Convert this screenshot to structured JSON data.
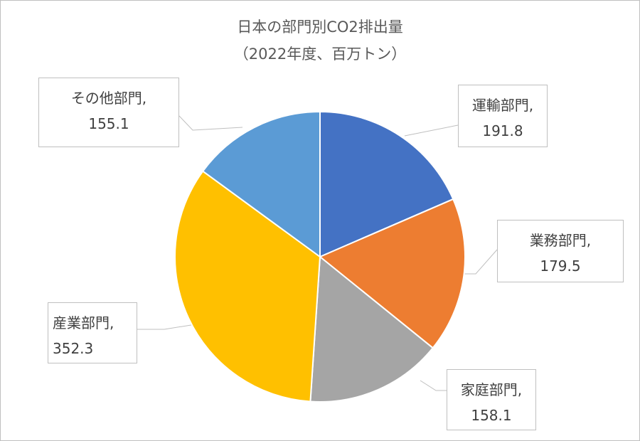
{
  "chart_data": {
    "type": "pie",
    "title": "日本の部門別CO2排出量",
    "subtitle": "（2022年度、百万トン）",
    "categories": [
      "運輸部門",
      "業務部門",
      "家庭部門",
      "産業部門",
      "その他部門"
    ],
    "values": [
      191.8,
      179.5,
      158.1,
      352.3,
      155.1
    ],
    "data_labels": [
      {
        "category": "運輸部門,",
        "value": "191.8"
      },
      {
        "category": "業務部門,",
        "value": "179.5"
      },
      {
        "category": "家庭部門,",
        "value": "158.1"
      },
      {
        "category": "産業部門,",
        "value": "352.3"
      },
      {
        "category": "その他部門,",
        "value": "155.1"
      }
    ],
    "colors": [
      "#4472c4",
      "#ed7d31",
      "#a5a5a5",
      "#ffc000",
      "#5b9bd5"
    ],
    "legend": "none",
    "label_style": "callout"
  }
}
